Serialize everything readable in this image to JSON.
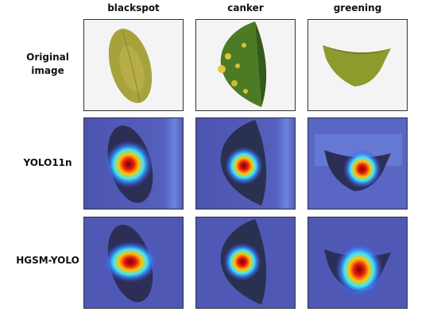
{
  "columns": [
    "blackspot",
    "canker",
    "greening"
  ],
  "rows": [
    {
      "label": "Original image"
    },
    {
      "label": "YOLO11n"
    },
    {
      "label": "HGSM-YOLO"
    }
  ]
}
